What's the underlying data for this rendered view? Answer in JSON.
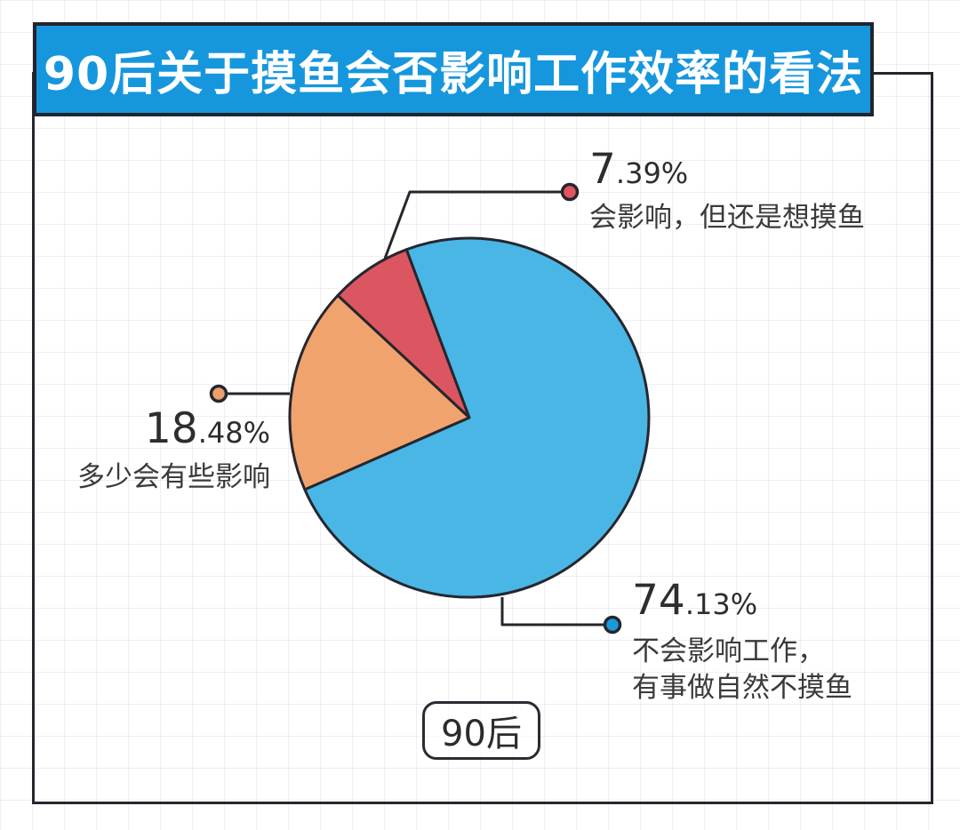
{
  "title": "90后关于摸鱼会否影响工作效率的看法",
  "group_tag": "90后",
  "colors": {
    "banner_bg": "#1697dd",
    "banner_text": "#ffffff",
    "outline": "#26262e",
    "number_text": "#2d2d2d",
    "label_text": "#3a3a3a"
  },
  "chart_data": {
    "type": "pie",
    "title": "90后关于摸鱼会否影响工作效率的看法",
    "group_label": "90后",
    "legend_position": "callouts",
    "start_angle_deg_ccw_from_east": 110.5,
    "slices": [
      {
        "label": "会影响，但还是想摸鱼",
        "value": 7.39,
        "display_int": "7",
        "display_frac": ".39%",
        "color": "#db5661",
        "dot_color": "#e2555f"
      },
      {
        "label": "多少会有些影响",
        "value": 18.48,
        "display_int": "18",
        "display_frac": ".48%",
        "color": "#f1a36e",
        "dot_color": "#eea06c"
      },
      {
        "label": "不会影响工作，有事做自然不摸鱼",
        "label_lines": [
          "不会影响工作，",
          "有事做自然不摸鱼"
        ],
        "value": 74.13,
        "display_int": "74",
        "display_frac": ".13%",
        "color": "#49b6e6",
        "dot_color": "#1b9ad9"
      }
    ]
  }
}
